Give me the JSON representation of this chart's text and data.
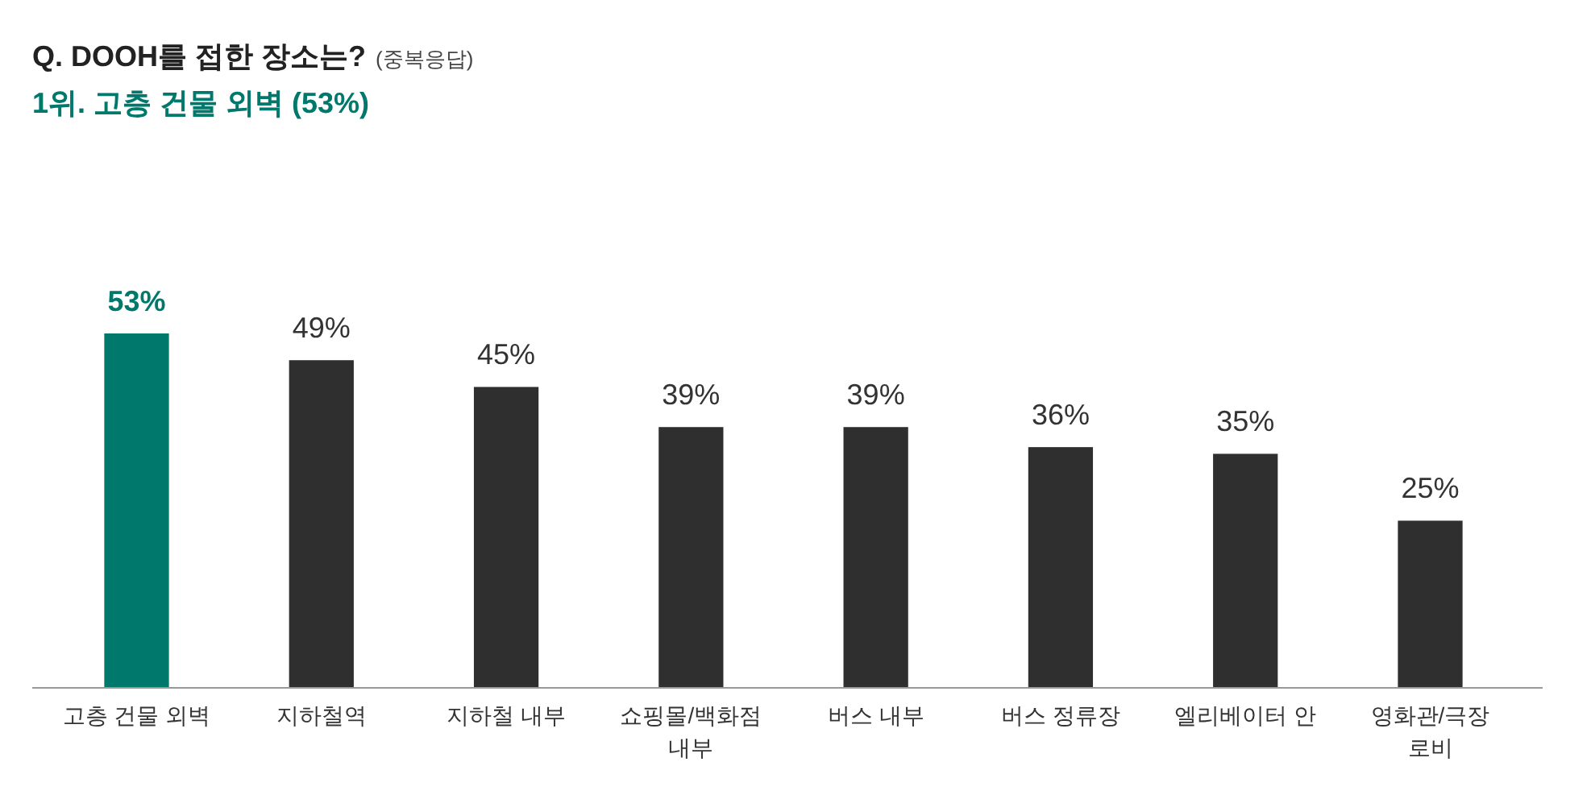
{
  "chart_data": {
    "type": "bar",
    "title": "Q. DOOH를 접한 장소는?",
    "subtitle": "1위. 고층 건물 외벽 (53%)",
    "annotations": [
      "(중복응답)"
    ],
    "categories": [
      "고층 건물 외벽",
      "지하철역",
      "지하철 내부",
      "쇼핑몰/백화점 내부",
      "버스 내부",
      "버스 정류장",
      "엘리베이터 안",
      "영화관/극장 로비"
    ],
    "values": [
      53,
      49,
      45,
      39,
      39,
      36,
      35,
      25
    ],
    "colors": [
      "#00786c",
      "#2f2f2f",
      "#2f2f2f",
      "#2f2f2f",
      "#2f2f2f",
      "#2f2f2f",
      "#2f2f2f",
      "#2f2f2f"
    ],
    "value_labels": [
      "53%",
      "49%",
      "45%",
      "39%",
      "39%",
      "36%",
      "35%",
      "25%"
    ]
  }
}
